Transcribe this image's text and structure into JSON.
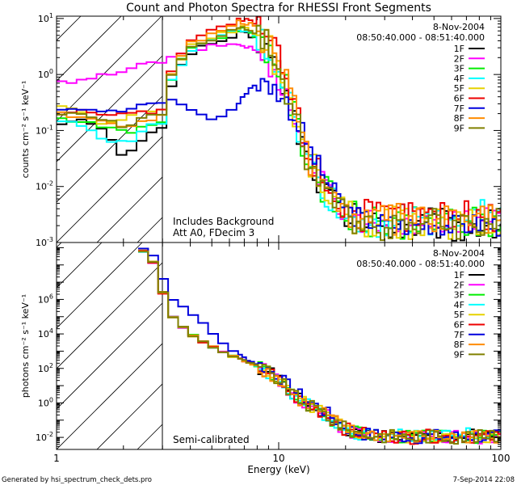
{
  "chart_data": {
    "type": "line",
    "title": "Count and Photon Spectra for RHESSI Front Segments",
    "xlabel": "Energy (keV)",
    "x_scale": "log",
    "xlim": [
      1,
      100
    ],
    "x_ticks": [
      {
        "v": 1,
        "label": "1"
      },
      {
        "v": 10,
        "label": "10"
      },
      {
        "v": 100,
        "label": "100"
      }
    ],
    "footer_left": "Generated by hsi_spectrum_check_dets.pro",
    "footer_right": "7-Sep-2014 22:08",
    "legend": {
      "date": "8-Nov-2004",
      "time_range": "08:50:40.000 - 08:51:40.000",
      "entries": [
        {
          "name": "1F",
          "color": "#000000"
        },
        {
          "name": "2F",
          "color": "#ff00ff"
        },
        {
          "name": "3F",
          "color": "#00ee00"
        },
        {
          "name": "4F",
          "color": "#00ffff"
        },
        {
          "name": "5F",
          "color": "#e6d200"
        },
        {
          "name": "6F",
          "color": "#ee0000"
        },
        {
          "name": "7F",
          "color": "#0000dd"
        },
        {
          "name": "8F",
          "color": "#ff8c00"
        },
        {
          "name": "9F",
          "color": "#808000"
        }
      ]
    },
    "hatch_region_keV": [
      1,
      3
    ],
    "panels": [
      {
        "name": "counts",
        "ylabel": "counts cm⁻² s⁻¹ keV⁻¹",
        "y_scale": "log",
        "ylim": [
          0.001,
          11
        ],
        "y_ticks": [
          {
            "v": 0.001,
            "base": "10",
            "exp": "-3"
          },
          {
            "v": 0.01,
            "base": "10",
            "exp": "-2"
          },
          {
            "v": 0.1,
            "base": "10",
            "exp": "-1"
          },
          {
            "v": 1,
            "base": "10",
            "exp": "0"
          },
          {
            "v": 10,
            "base": "10",
            "exp": "1"
          }
        ],
        "notes": [
          "Includes Background",
          "Att A0, FDecim 3"
        ],
        "energy_keV": [
          1,
          1.33,
          1.67,
          2,
          2.33,
          2.67,
          3,
          3.33,
          4,
          4.67,
          5.33,
          6,
          6.67,
          7.33,
          8,
          9,
          10,
          11,
          12,
          13,
          14,
          16,
          18,
          20,
          22,
          25,
          30,
          35,
          40,
          50,
          60,
          70,
          80,
          90,
          100
        ],
        "series": [
          {
            "name": "1F",
            "noise": 0.3,
            "values": [
              0.14,
              0.15,
              0.09,
              0.035,
              0.05,
              0.1,
              0.12,
              0.8,
              2.5,
              3.2,
              3.8,
              4.5,
              5.5,
              5.0,
              4.0,
              2.5,
              1.1,
              0.4,
              0.13,
              0.05,
              0.025,
              0.009,
              0.005,
              0.003,
              0.0025,
              0.002,
              0.0022,
              0.002,
              0.002,
              0.0022,
              0.002,
              0.002,
              0.0022,
              0.002,
              0.002
            ]
          },
          {
            "name": "2F",
            "noise": 0.25,
            "values": [
              0.7,
              0.75,
              1.0,
              1.2,
              1.4,
              1.6,
              1.7,
              2.0,
              2.5,
              3.0,
              3.3,
              3.5,
              3.4,
              3.1,
              2.6,
              1.7,
              0.9,
              0.35,
              0.13,
              0.05,
              0.025,
              0.01,
              0.0055,
              0.0035,
              0.003,
              0.0025,
              0.0025,
              0.0023,
              0.0023,
              0.0024,
              0.0023,
              0.0023,
              0.0024,
              0.0023,
              0.0023
            ]
          },
          {
            "name": "3F",
            "noise": 0.3,
            "values": [
              0.16,
              0.15,
              0.12,
              0.09,
              0.1,
              0.13,
              0.15,
              1.0,
              3.0,
              3.8,
              4.5,
              5.5,
              6.5,
              6.0,
              4.8,
              3.0,
              1.3,
              0.45,
              0.14,
              0.05,
              0.025,
              0.009,
              0.005,
              0.003,
              0.0027,
              0.0022,
              0.0022,
              0.0023,
              0.0022,
              0.0022,
              0.0023,
              0.0022,
              0.0022,
              0.0023,
              0.0022
            ]
          },
          {
            "name": "4F",
            "noise": 0.3,
            "values": [
              0.15,
              0.12,
              0.07,
              0.06,
              0.08,
              0.12,
              0.14,
              0.9,
              2.8,
              3.6,
              4.3,
              5.2,
              6.2,
              5.7,
              4.5,
              2.8,
              1.2,
              0.42,
              0.13,
              0.05,
              0.025,
              0.009,
              0.005,
              0.003,
              0.0028,
              0.0024,
              0.0025,
              0.0026,
              0.0025,
              0.0028,
              0.0027,
              0.0028,
              0.003,
              0.0028,
              0.0027
            ]
          },
          {
            "name": "5F",
            "noise": 0.3,
            "values": [
              0.3,
              0.2,
              0.13,
              0.15,
              0.2,
              0.22,
              0.25,
              1.2,
              3.2,
              4.2,
              5.0,
              6.0,
              7.0,
              6.5,
              5.2,
              3.2,
              1.4,
              0.5,
              0.15,
              0.055,
              0.027,
              0.01,
              0.0055,
              0.0032,
              0.0028,
              0.0023,
              0.0022,
              0.0022,
              0.0023,
              0.0022,
              0.0022,
              0.0023,
              0.0022,
              0.0022,
              0.0022
            ]
          },
          {
            "name": "6F",
            "noise": 0.3,
            "values": [
              0.2,
              0.22,
              0.2,
              0.2,
              0.2,
              0.22,
              0.25,
              1.5,
              4.0,
              5.5,
              6.5,
              8.0,
              9.5,
              9.0,
              7.0,
              4.5,
              2.0,
              0.7,
              0.2,
              0.07,
              0.035,
              0.013,
              0.007,
              0.004,
              0.0035,
              0.003,
              0.003,
              0.0032,
              0.003,
              0.003,
              0.0032,
              0.003,
              0.003,
              0.0032,
              0.003
            ]
          },
          {
            "name": "7F",
            "noise": 0.2,
            "values": [
              0.25,
              0.25,
              0.22,
              0.22,
              0.27,
              0.3,
              0.32,
              0.35,
              0.25,
              0.17,
              0.16,
              0.22,
              0.32,
              0.55,
              0.7,
              0.65,
              0.5,
              0.3,
              0.15,
              0.08,
              0.04,
              0.015,
              0.007,
              0.004,
              0.003,
              0.0025,
              0.0022,
              0.002,
              0.002,
              0.0022,
              0.002,
              0.002,
              0.0022,
              0.002,
              0.002
            ]
          },
          {
            "name": "8F",
            "noise": 0.3,
            "values": [
              0.2,
              0.18,
              0.15,
              0.12,
              0.13,
              0.16,
              0.2,
              1.3,
              3.5,
              4.8,
              5.8,
              7.0,
              8.5,
              8.0,
              6.2,
              3.8,
              1.7,
              0.6,
              0.17,
              0.06,
              0.03,
              0.011,
              0.006,
              0.0035,
              0.003,
              0.0025,
              0.0025,
              0.0026,
              0.0025,
              0.0025,
              0.0026,
              0.0025,
              0.0025,
              0.0026,
              0.0025
            ]
          },
          {
            "name": "9F",
            "noise": 0.3,
            "values": [
              0.18,
              0.2,
              0.15,
              0.12,
              0.15,
              0.18,
              0.2,
              1.1,
              3.0,
              4.0,
              4.8,
              5.8,
              6.8,
              6.3,
              5.0,
              3.0,
              1.3,
              0.45,
              0.14,
              0.05,
              0.025,
              0.009,
              0.005,
              0.003,
              0.0027,
              0.0022,
              0.0022,
              0.0022,
              0.0023,
              0.0022,
              0.0022,
              0.0022,
              0.0023,
              0.0022,
              0.0022
            ]
          }
        ]
      },
      {
        "name": "photons",
        "ylabel": "photons cm⁻² s⁻¹ keV⁻¹",
        "y_scale": "log",
        "ylim": [
          0.002,
          2000000000
        ],
        "y_ticks": [
          {
            "v": 0.01,
            "base": "10",
            "exp": "-2"
          },
          {
            "v": 1,
            "base": "10",
            "exp": "0"
          },
          {
            "v": 100,
            "base": "10",
            "exp": "2"
          },
          {
            "v": 10000,
            "base": "10",
            "exp": "4"
          },
          {
            "v": 1000000,
            "base": "10",
            "exp": "6"
          }
        ],
        "notes": [
          "Semi-calibrated"
        ],
        "energy_keV": [
          2.33,
          2.67,
          3,
          3.33,
          4,
          4.67,
          5.33,
          6,
          6.67,
          7.33,
          8,
          9,
          10,
          11,
          12,
          13,
          14,
          16,
          18,
          20,
          22,
          25,
          30,
          35,
          40,
          50,
          60,
          70,
          80,
          90,
          100
        ],
        "series": [
          {
            "name": "1F",
            "noise": 0.4,
            "values": [
              1000000000,
              300000000,
              3000000,
              100000,
              10000,
              3000,
              1200,
              600,
              350,
              220,
              140,
              60,
              20,
              6,
              2,
              1,
              0.6,
              0.25,
              0.08,
              0.03,
              0.02,
              0.015,
              0.012,
              0.012,
              0.01,
              0.012,
              0.01,
              0.012,
              0.011,
              0.01,
              0.012
            ]
          },
          {
            "name": "2F",
            "noise": 0.4,
            "values": [
              1000000000,
              300000000,
              3000000,
              100000,
              9000,
              3000,
              1300,
              650,
              380,
              240,
              150,
              65,
              22,
              7,
              2.2,
              1.1,
              0.65,
              0.25,
              0.08,
              0.03,
              0.02,
              0.015,
              0.012,
              0.012,
              0.011,
              0.012,
              0.011,
              0.012,
              0.011,
              0.011,
              0.012
            ]
          },
          {
            "name": "3F",
            "noise": 0.4,
            "values": [
              1000000000,
              300000000,
              3000000,
              100000,
              10000,
              3000,
              1200,
              600,
              350,
              220,
              140,
              60,
              20,
              6,
              2,
              1,
              0.6,
              0.25,
              0.08,
              0.03,
              0.02,
              0.015,
              0.012,
              0.012,
              0.01,
              0.012,
              0.01,
              0.012,
              0.011,
              0.01,
              0.012
            ]
          },
          {
            "name": "4F",
            "noise": 0.4,
            "values": [
              1000000000,
              300000000,
              3000000,
              100000,
              10000,
              3000,
              1200,
              600,
              350,
              220,
              140,
              60,
              20,
              6,
              2,
              1,
              0.6,
              0.25,
              0.08,
              0.03,
              0.02,
              0.015,
              0.012,
              0.013,
              0.012,
              0.014,
              0.013,
              0.015,
              0.014,
              0.013,
              0.015
            ]
          },
          {
            "name": "5F",
            "noise": 0.4,
            "values": [
              1000000000,
              300000000,
              3000000,
              100000,
              10000,
              3000,
              1200,
              600,
              350,
              220,
              140,
              60,
              20,
              6,
              2,
              1,
              0.6,
              0.25,
              0.08,
              0.03,
              0.02,
              0.015,
              0.012,
              0.012,
              0.01,
              0.012,
              0.01,
              0.012,
              0.011,
              0.01,
              0.012
            ]
          },
          {
            "name": "6F",
            "noise": 0.4,
            "values": [
              1000000000,
              300000000,
              3000000,
              100000,
              10000,
              3000,
              1200,
              600,
              350,
              220,
              140,
              60,
              20,
              6,
              2,
              1,
              0.6,
              0.25,
              0.08,
              0.03,
              0.02,
              0.015,
              0.012,
              0.012,
              0.01,
              0.012,
              0.01,
              0.012,
              0.011,
              0.01,
              0.012
            ]
          },
          {
            "name": "7F",
            "noise": 0.4,
            "values": [
              1000000000,
              700000000,
              20000000,
              1000000,
              200000,
              30000,
              5000,
              1500,
              600,
              300,
              180,
              90,
              35,
              10,
              4,
              1.8,
              1,
              0.35,
              0.1,
              0.04,
              0.02,
              0.015,
              0.012,
              0.012,
              0.01,
              0.012,
              0.01,
              0.012,
              0.011,
              0.01,
              0.012
            ]
          },
          {
            "name": "8F",
            "noise": 0.4,
            "values": [
              1000000000,
              300000000,
              3000000,
              100000,
              10000,
              3000,
              1200,
              600,
              350,
              220,
              140,
              60,
              20,
              6,
              2,
              1,
              0.6,
              0.25,
              0.08,
              0.03,
              0.02,
              0.015,
              0.012,
              0.012,
              0.01,
              0.012,
              0.01,
              0.012,
              0.011,
              0.01,
              0.012
            ]
          },
          {
            "name": "9F",
            "noise": 0.4,
            "values": [
              1000000000,
              300000000,
              3000000,
              100000,
              10000,
              3000,
              1200,
              600,
              350,
              220,
              140,
              60,
              20,
              6,
              2,
              1,
              0.6,
              0.25,
              0.08,
              0.03,
              0.02,
              0.015,
              0.012,
              0.012,
              0.01,
              0.012,
              0.01,
              0.012,
              0.011,
              0.01,
              0.012
            ]
          }
        ]
      }
    ]
  }
}
